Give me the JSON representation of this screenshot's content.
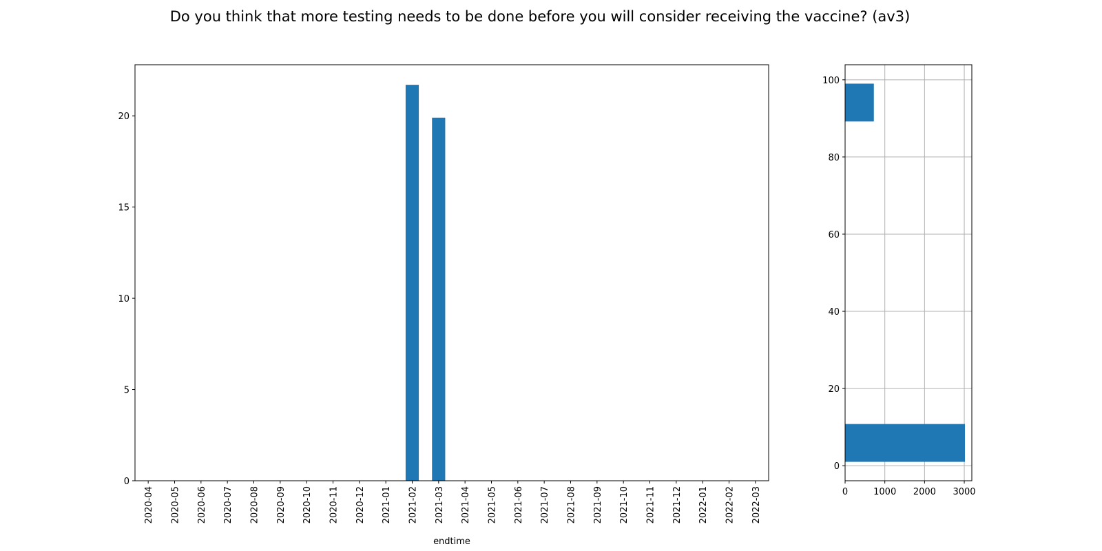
{
  "chart_data": [
    {
      "type": "bar",
      "title": "Do you think that more testing needs to be done before you will consider receiving the vaccine? (av3)",
      "x_label": "endtime",
      "categories": [
        "2020-04",
        "2020-05",
        "2020-06",
        "2020-07",
        "2020-08",
        "2020-09",
        "2020-10",
        "2020-11",
        "2020-12",
        "2021-01",
        "2021-02",
        "2021-03",
        "2021-04",
        "2021-05",
        "2021-06",
        "2021-07",
        "2021-08",
        "2021-09",
        "2021-10",
        "2021-11",
        "2021-12",
        "2022-01",
        "2022-02",
        "2022-03"
      ],
      "values": [
        0,
        0,
        0,
        0,
        0,
        0,
        0,
        0,
        0,
        0,
        21.7,
        19.9,
        0,
        0,
        0,
        0,
        0,
        0,
        0,
        0,
        0,
        0,
        0,
        0
      ],
      "color": "#1f77b4",
      "ylim": [
        0,
        22.8
      ],
      "yticks": [
        0,
        5,
        10,
        15,
        20
      ],
      "grid": false
    },
    {
      "type": "histogram",
      "orientation": "horizontal",
      "bins": [
        1,
        10.8,
        20.6,
        30.4,
        40.2,
        50,
        59.8,
        69.6,
        79.4,
        89.2,
        99
      ],
      "counts": [
        3017,
        0,
        0,
        0,
        0,
        0,
        0,
        0,
        0,
        724
      ],
      "color": "#1f77b4",
      "xlim": [
        0,
        3190
      ],
      "xticks": [
        0,
        1000,
        2000,
        3000
      ],
      "ylim": [
        -3.9,
        103.9
      ],
      "yticks": [
        0,
        20,
        40,
        60,
        80,
        100
      ],
      "grid": true
    }
  ]
}
